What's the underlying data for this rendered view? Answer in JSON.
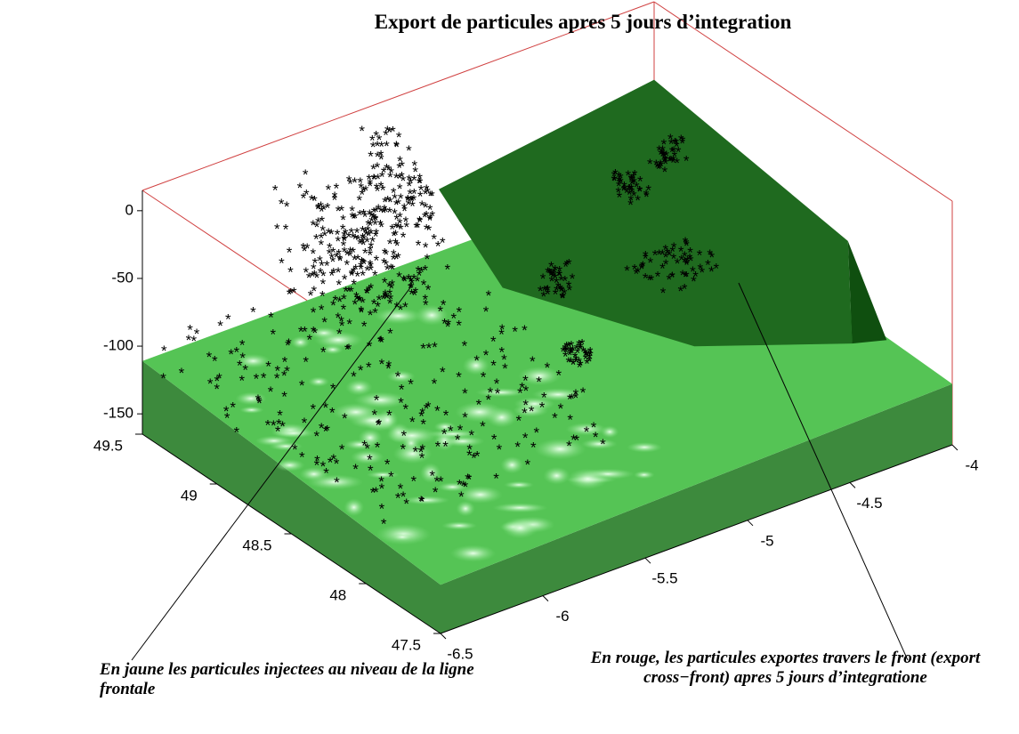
{
  "chart_data": {
    "type": "surface3d",
    "title": "Export de particules apres 5 jours d’integration",
    "annotations": [
      "En jaune les particules injectees au niveau de la ligne frontale",
      "En rouge, les particules exportes  travers le front (export cross−front) apres 5 jours d’integratione"
    ],
    "xlim": [
      47.5,
      49.5
    ],
    "xticks": [
      47.5,
      48,
      48.5,
      49,
      49.5
    ],
    "ylim": [
      -6.5,
      -4
    ],
    "yticks": [
      -6.5,
      -6,
      -5.5,
      -5,
      -4.5,
      -4
    ],
    "zlim": [
      -165,
      15
    ],
    "zticks": [
      -150,
      -100,
      -50,
      0
    ]
  }
}
